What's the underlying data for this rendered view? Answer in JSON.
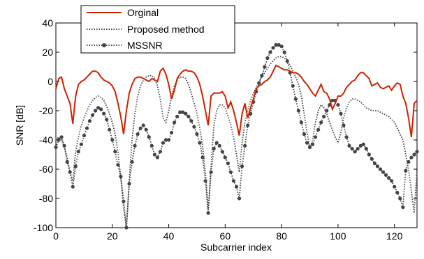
{
  "chart_data": {
    "type": "line",
    "xlabel": "Subcarrier index",
    "ylabel": "SNR [dB]",
    "xlim": [
      0,
      128
    ],
    "ylim": [
      -100,
      40
    ],
    "xticks": [
      "0",
      "20",
      "40",
      "60",
      "80",
      "100",
      "120"
    ],
    "yticks": [
      "-100",
      "-80",
      "-60",
      "-40",
      "-20",
      "0",
      "20",
      "40"
    ],
    "grid": false,
    "legend_position": "top-left",
    "series": [
      {
        "name": "Orginal",
        "color": "#cc2200",
        "style": "solid",
        "x": [
          0,
          1,
          2,
          3,
          4,
          5,
          6,
          7,
          8,
          9,
          10,
          11,
          12,
          13,
          14,
          15,
          16,
          17,
          18,
          19,
          20,
          21,
          22,
          23,
          24,
          25,
          26,
          27,
          28,
          29,
          30,
          31,
          32,
          33,
          34,
          35,
          36,
          37,
          38,
          39,
          40,
          41,
          42,
          43,
          44,
          45,
          46,
          47,
          48,
          49,
          50,
          51,
          52,
          53,
          54,
          55,
          56,
          57,
          58,
          59,
          60,
          61,
          62,
          63,
          64,
          65,
          66,
          67,
          68,
          69,
          70,
          71,
          72,
          73,
          74,
          75,
          76,
          77,
          78,
          79,
          80,
          81,
          82,
          83,
          84,
          85,
          86,
          87,
          88,
          89,
          90,
          91,
          92,
          93,
          94,
          95,
          96,
          97,
          98,
          99,
          100,
          101,
          102,
          103,
          104,
          105,
          106,
          107,
          108,
          109,
          110,
          111,
          112,
          113,
          114,
          115,
          116,
          117,
          118,
          119,
          120,
          121,
          122,
          123,
          124,
          125,
          126,
          127,
          128
        ],
        "y": [
          -5,
          2,
          3,
          -5,
          -10,
          -15,
          -29,
          -10,
          -2,
          0,
          1,
          3,
          5,
          7,
          7,
          6,
          3,
          1,
          0,
          -1,
          -3,
          -7,
          -15,
          -24,
          -36,
          -20,
          -8,
          -2,
          2,
          3,
          3,
          2,
          1,
          0,
          2,
          1,
          0,
          7,
          9,
          5,
          -2,
          -12,
          -6,
          2,
          5,
          7,
          8,
          7,
          7,
          6,
          3,
          -2,
          -10,
          -20,
          -30,
          -10,
          -8,
          -8,
          -8,
          -7,
          -10,
          -18,
          -14,
          -20,
          -28,
          -37,
          -22,
          -15,
          -25,
          -18,
          -12,
          -5,
          -3,
          -2,
          0,
          1,
          3,
          7,
          11,
          10,
          9,
          8,
          8,
          7,
          6,
          6,
          5,
          3,
          0,
          -2,
          -5,
          -8,
          -10,
          -6,
          -2,
          -7,
          -8,
          -12,
          -19,
          -15,
          -10,
          -10,
          -8,
          -4,
          -2,
          0,
          1,
          4,
          6,
          6,
          4,
          2,
          -3,
          -2,
          -1,
          -4,
          -5,
          -4,
          -3,
          -6,
          -3,
          -1,
          -2,
          -10,
          -15,
          -25,
          -38,
          -15,
          -13
        ]
      },
      {
        "name": "Proposed method",
        "color": "#444444",
        "style": "dotted",
        "x": [
          0,
          1,
          2,
          3,
          4,
          5,
          6,
          7,
          8,
          9,
          10,
          11,
          12,
          13,
          14,
          15,
          16,
          17,
          18,
          19,
          20,
          21,
          22,
          23,
          24,
          25,
          26,
          27,
          28,
          29,
          30,
          31,
          32,
          33,
          34,
          35,
          36,
          37,
          38,
          39,
          40,
          41,
          42,
          43,
          44,
          45,
          46,
          47,
          48,
          49,
          50,
          51,
          52,
          53,
          54,
          55,
          56,
          57,
          58,
          59,
          60,
          61,
          62,
          63,
          64,
          65,
          66,
          67,
          68,
          69,
          70,
          71,
          72,
          73,
          74,
          75,
          76,
          77,
          78,
          79,
          80,
          81,
          82,
          83,
          84,
          85,
          86,
          87,
          88,
          89,
          90,
          91,
          92,
          93,
          94,
          95,
          96,
          97,
          98,
          99,
          100,
          101,
          102,
          103,
          104,
          105,
          106,
          107,
          108,
          109,
          110,
          111,
          112,
          113,
          114,
          115,
          116,
          117,
          118,
          119,
          120,
          121,
          122,
          123,
          124,
          125,
          126,
          127,
          128
        ],
        "y": [
          -40,
          -38,
          -40,
          -45,
          -52,
          -62,
          -68,
          -48,
          -38,
          -30,
          -25,
          -20,
          -16,
          -13,
          -11,
          -10,
          -11,
          -13,
          -17,
          -22,
          -28,
          -36,
          -48,
          -66,
          -86,
          -100,
          -68,
          -40,
          -22,
          -10,
          -3,
          1,
          3,
          4,
          4,
          2,
          -3,
          -12,
          -25,
          -28,
          -20,
          -10,
          -3,
          1,
          3,
          3,
          2,
          -2,
          -8,
          -15,
          -22,
          -32,
          -44,
          -62,
          -88,
          -58,
          -30,
          -20,
          -16,
          -16,
          -18,
          -24,
          -30,
          -38,
          -50,
          -62,
          -42,
          -28,
          -20,
          -13,
          -8,
          -4,
          0,
          3,
          6,
          9,
          12,
          14,
          16,
          17,
          17,
          16,
          14,
          11,
          7,
          3,
          -2,
          -10,
          -22,
          -35,
          -45,
          -40,
          -28,
          -20,
          -16,
          -18,
          -22,
          -28,
          -33,
          -38,
          -42,
          -35,
          -25,
          -18,
          -14,
          -12,
          -12,
          -13,
          -14,
          -16,
          -18,
          -19,
          -20,
          -20,
          -20,
          -21,
          -22,
          -23,
          -24,
          -26,
          -28,
          -32,
          -36,
          -40,
          -50,
          -60,
          -75,
          -90,
          -60
        ]
      },
      {
        "name": "MSSNR",
        "color": "#444444",
        "style": "dotted-markers",
        "x": [
          0,
          1,
          2,
          3,
          4,
          5,
          6,
          7,
          8,
          9,
          10,
          11,
          12,
          13,
          14,
          15,
          16,
          17,
          18,
          19,
          20,
          21,
          22,
          23,
          24,
          25,
          26,
          27,
          28,
          29,
          30,
          31,
          32,
          33,
          34,
          35,
          36,
          37,
          38,
          39,
          40,
          41,
          42,
          43,
          44,
          45,
          46,
          47,
          48,
          49,
          50,
          51,
          52,
          53,
          54,
          55,
          56,
          57,
          58,
          59,
          60,
          61,
          62,
          63,
          64,
          65,
          66,
          67,
          68,
          69,
          70,
          71,
          72,
          73,
          74,
          75,
          76,
          77,
          78,
          79,
          80,
          81,
          82,
          83,
          84,
          85,
          86,
          87,
          88,
          89,
          90,
          91,
          92,
          93,
          94,
          95,
          96,
          97,
          98,
          99,
          100,
          101,
          102,
          103,
          104,
          105,
          106,
          107,
          108,
          109,
          110,
          111,
          112,
          113,
          114,
          115,
          116,
          117,
          118,
          119,
          120,
          121,
          122,
          123,
          124,
          125,
          126,
          127,
          128
        ],
        "y": [
          -45,
          -40,
          -38,
          -44,
          -55,
          -62,
          -72,
          -58,
          -48,
          -43,
          -37,
          -32,
          -27,
          -23,
          -20,
          -18,
          -19,
          -22,
          -26,
          -33,
          -40,
          -48,
          -57,
          -65,
          -82,
          -100,
          -70,
          -55,
          -44,
          -36,
          -32,
          -30,
          -33,
          -38,
          -44,
          -50,
          -52,
          -48,
          -42,
          -40,
          -40,
          -35,
          -28,
          -24,
          -21,
          -21,
          -22,
          -24,
          -27,
          -31,
          -36,
          -42,
          -52,
          -68,
          -90,
          -62,
          -46,
          -42,
          -44,
          -48,
          -52,
          -56,
          -62,
          -68,
          -72,
          -80,
          -58,
          -44,
          -30,
          -22,
          -14,
          -7,
          -1,
          4,
          10,
          16,
          20,
          23,
          25,
          25,
          24,
          20,
          14,
          6,
          -3,
          -12,
          -20,
          -28,
          -36,
          -42,
          -45,
          -43,
          -38,
          -33,
          -28,
          -24,
          -20,
          -16,
          -13,
          -13,
          -16,
          -22,
          -30,
          -38,
          -44,
          -46,
          -48,
          -46,
          -44,
          -43,
          -46,
          -50,
          -53,
          -56,
          -58,
          -60,
          -62,
          -64,
          -66,
          -68,
          -72,
          -76,
          -80,
          -86,
          -61,
          -55,
          -52,
          -50,
          -48
        ]
      }
    ]
  }
}
